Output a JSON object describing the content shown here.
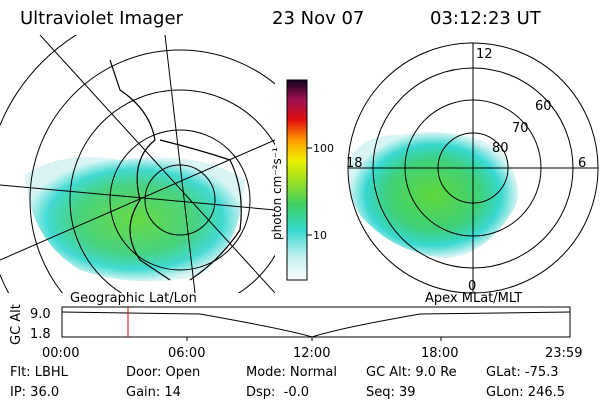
{
  "header": {
    "title": "Ultraviolet Imager",
    "date": "23 Nov 07",
    "time": "03:12:23 UT"
  },
  "colorbar": {
    "label": "photon cm⁻²s⁻¹",
    "ticks": [
      "100",
      "10"
    ]
  },
  "left_map": {
    "label": "Geographic Lat/Lon"
  },
  "right_map": {
    "label": "Apex MLat/MLT",
    "mlt_labels": [
      "12",
      "18",
      "6",
      "0"
    ],
    "lat_labels": [
      "60",
      "70",
      "80"
    ]
  },
  "altitude_plot": {
    "ylabel": "GC Alt",
    "yticks": [
      "9.0",
      "1.8"
    ],
    "xticks": [
      "00:00",
      "06:00",
      "12:00",
      "18:00",
      "23:59"
    ]
  },
  "info": {
    "rows": [
      [
        "Flt: LBHL",
        "Door: Open",
        "Mode: Normal",
        "GC Alt: 9.0 Re",
        "GLat: -75.3"
      ],
      [
        "IP: 36.0",
        "Gain: 14",
        "Dsp:  -0.0",
        "Seq: 39",
        "GLon: 246.5"
      ]
    ]
  }
}
